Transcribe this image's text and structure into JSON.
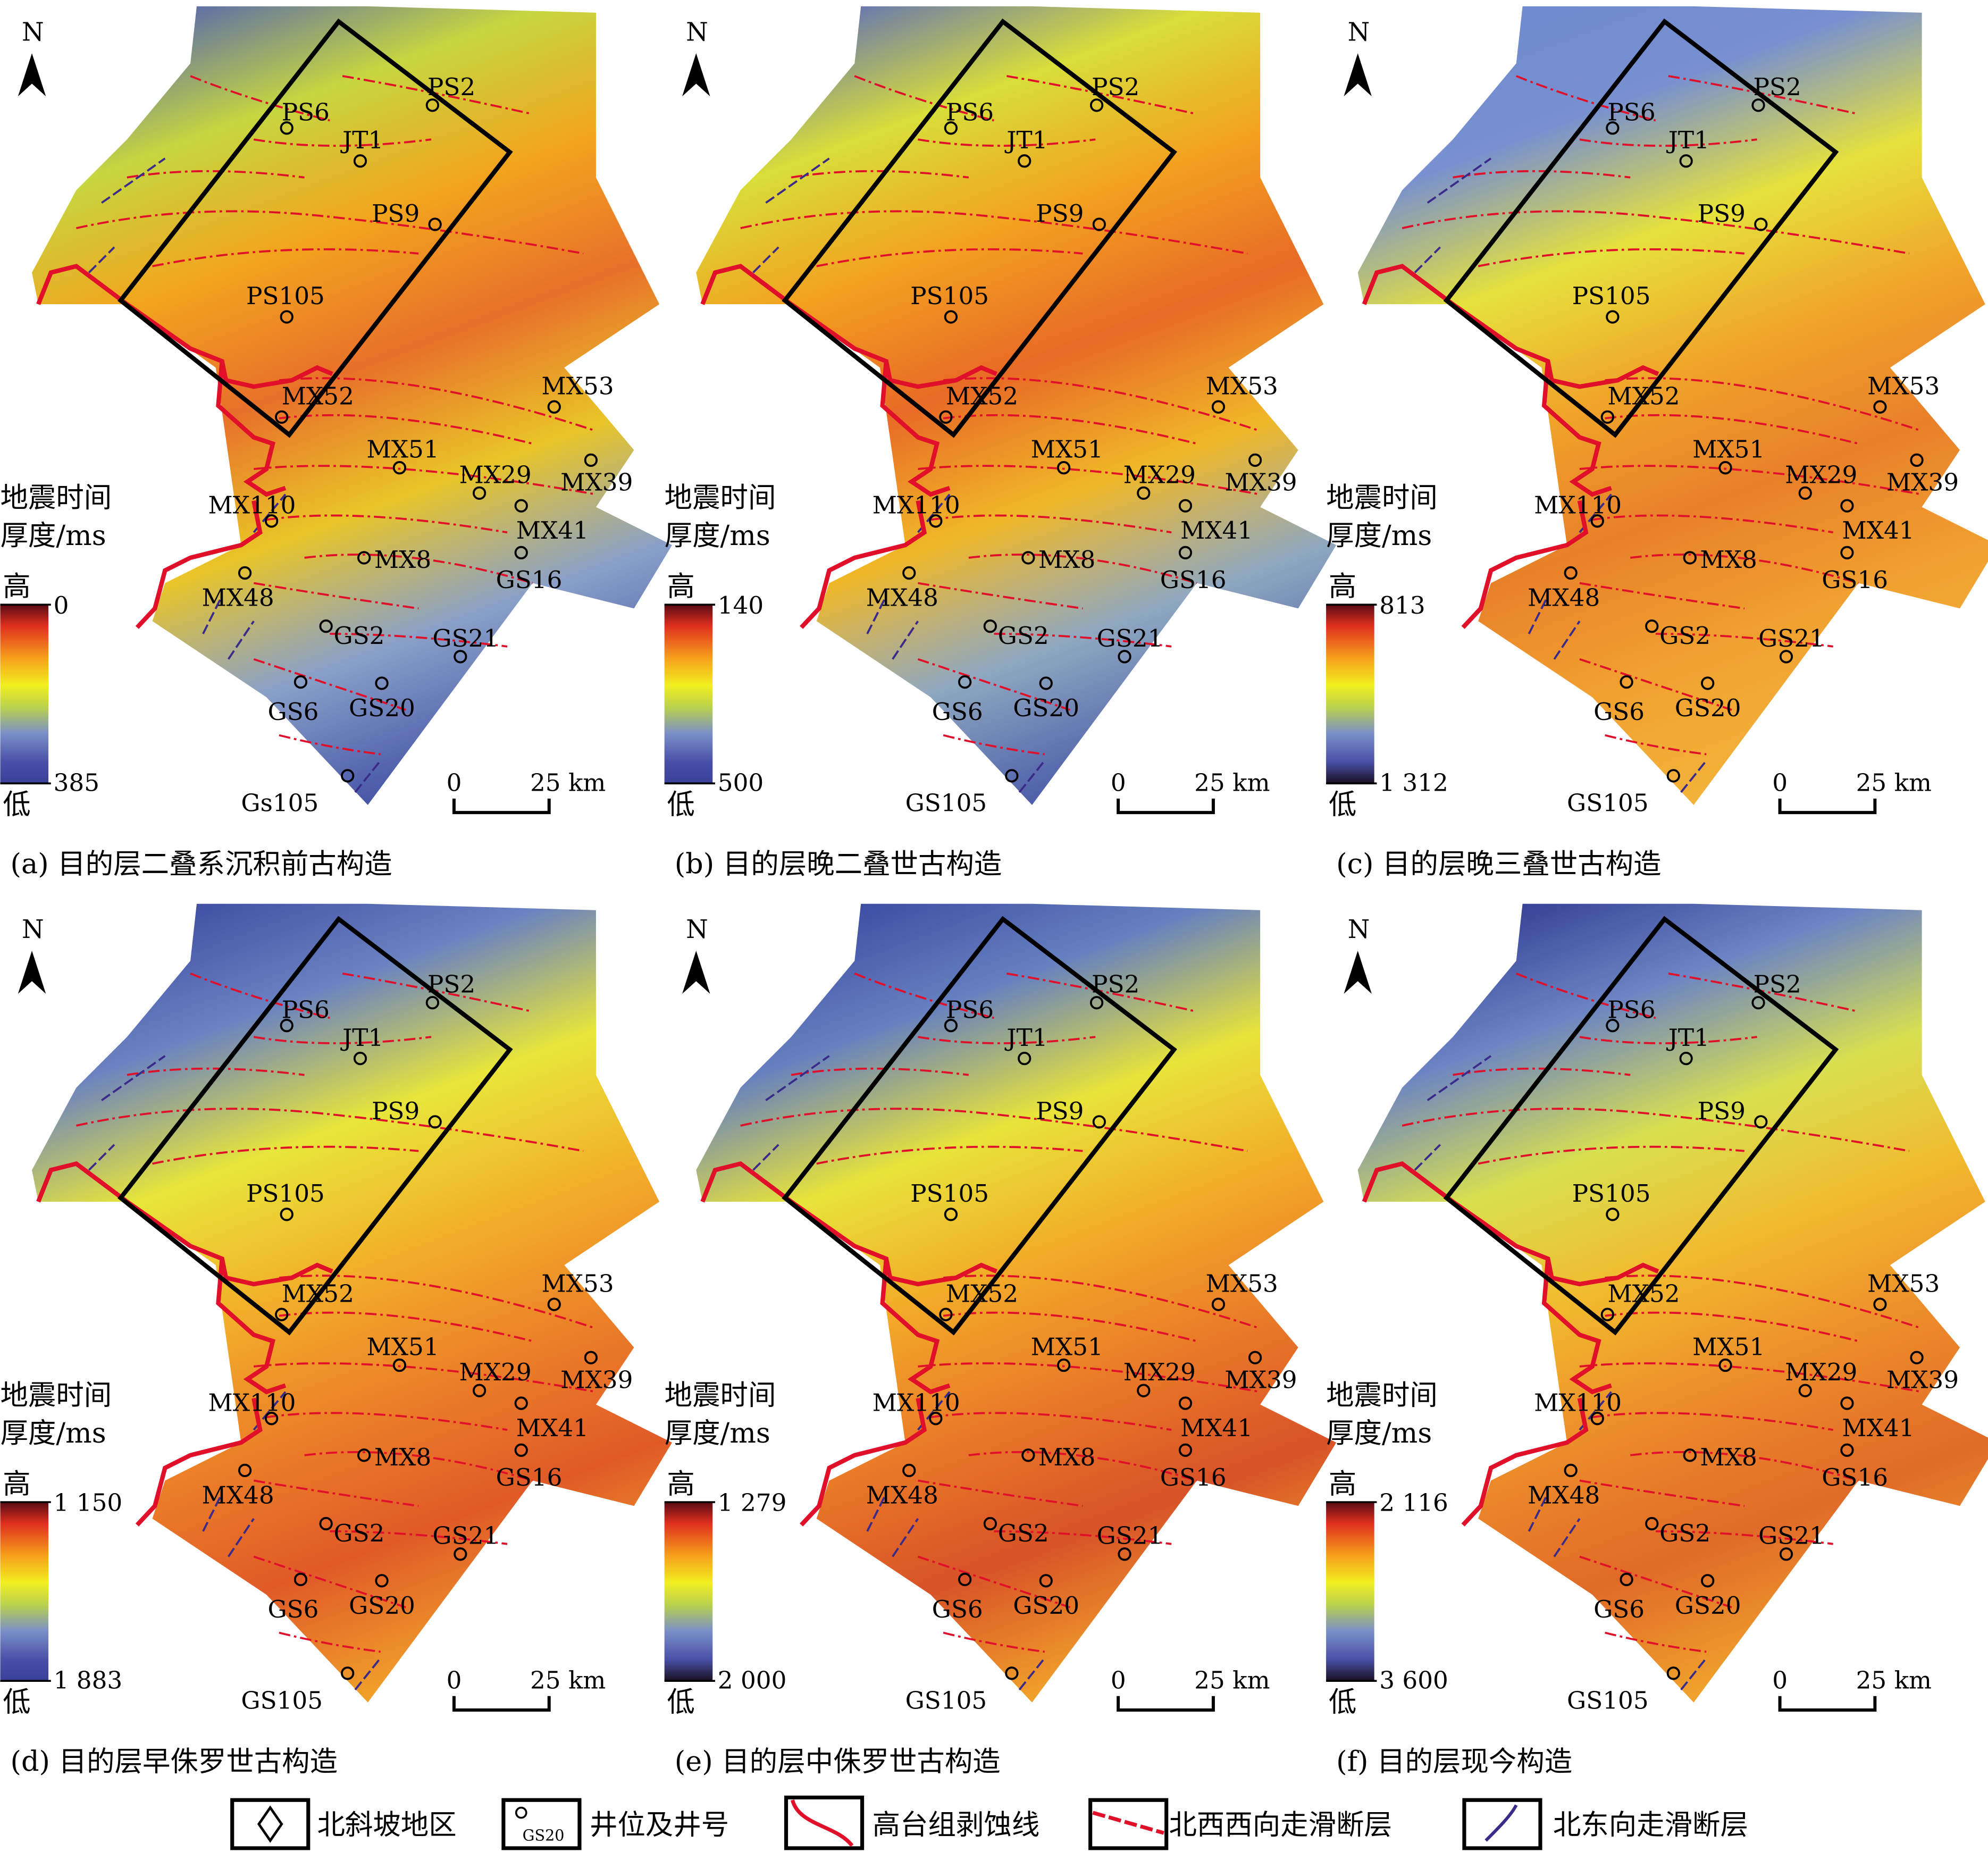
{
  "legend_title_line1": "地震时间",
  "legend_title_line2": "厚度/ms",
  "high_label": "高",
  "low_label": "低",
  "north_label": "N",
  "scale_zero": "0",
  "scale_label": "25 km",
  "panels": [
    {
      "caption": "(a) 目的层二叠系沉积前古构造",
      "cb_top": "0",
      "cb_bottom": "385",
      "gs105": "Gs105",
      "stops": [
        "#5566b0",
        "#c6d640",
        "#f2a41e",
        "#e8702a",
        "#e9c528",
        "#8aa0c8",
        "#4a58a8"
      ],
      "cb_low": "#3a3f98"
    },
    {
      "caption": "(b) 目的层晚二叠世古构造",
      "cb_top": "140",
      "cb_bottom": "500",
      "gs105": "GS105",
      "stops": [
        "#6070b8",
        "#d8de3a",
        "#f3a020",
        "#e86a26",
        "#f0b828",
        "#90a8c0",
        "#5060aa"
      ],
      "cb_low": "#3a3f98"
    },
    {
      "caption": "(c) 目的层晚三叠世古构造",
      "cb_top": "813",
      "cb_bottom": "1 312",
      "gs105": "GS105",
      "stops": [
        "#6f8ad0",
        "#7890d0",
        "#e6e23c",
        "#f0a42a",
        "#e8802a",
        "#f0a030",
        "#f3b23a"
      ],
      "cb_low": "#1a1020"
    },
    {
      "caption": "(d) 目的层早侏罗世古构造",
      "cb_top": "1 150",
      "cb_bottom": "1 883",
      "gs105": "GS105",
      "stops": [
        "#3e4aa0",
        "#6a82c2",
        "#e8e63a",
        "#f2b02a",
        "#ec8028",
        "#e05a28",
        "#f0a02a"
      ],
      "cb_low": "#3a3f98"
    },
    {
      "caption": "(e) 目的层中侏罗世古构造",
      "cb_top": "1 279",
      "cb_bottom": "2 000",
      "gs105": "GS105",
      "stops": [
        "#3a48a0",
        "#6680c0",
        "#e8e43a",
        "#f2aa28",
        "#ea7a28",
        "#d85228",
        "#f0a02a"
      ],
      "cb_low": "#1a1020"
    },
    {
      "caption": "(f) 目的层现今构造",
      "cb_top": "2 116",
      "cb_bottom": "3 600",
      "gs105": "GS105",
      "stops": [
        "#323c92",
        "#6c84c4",
        "#d8e050",
        "#f2b82e",
        "#ec8a2a",
        "#e06a28",
        "#f0a22c"
      ],
      "cb_low": "#1a1020"
    }
  ],
  "wells": [
    "PS6",
    "PS2",
    "JT1",
    "PS9",
    "PS105",
    "MX52",
    "MX53",
    "MX51",
    "MX29",
    "MX39",
    "MX110",
    "MX41",
    "MX8",
    "GS16",
    "MX48",
    "GS2",
    "GS21",
    "GS6",
    "GS20"
  ],
  "legend": {
    "area": "北斜坡地区",
    "well_sample": "GS20",
    "well": "井位及井号",
    "erosion": "高台组剥蚀线",
    "nww_fault": "北西西向走滑断层",
    "ne_fault": "北东向走滑断层"
  },
  "colors": {
    "fault_nww": "#e0102a",
    "fault_ne": "#3a2a8a",
    "box": "#000000"
  }
}
